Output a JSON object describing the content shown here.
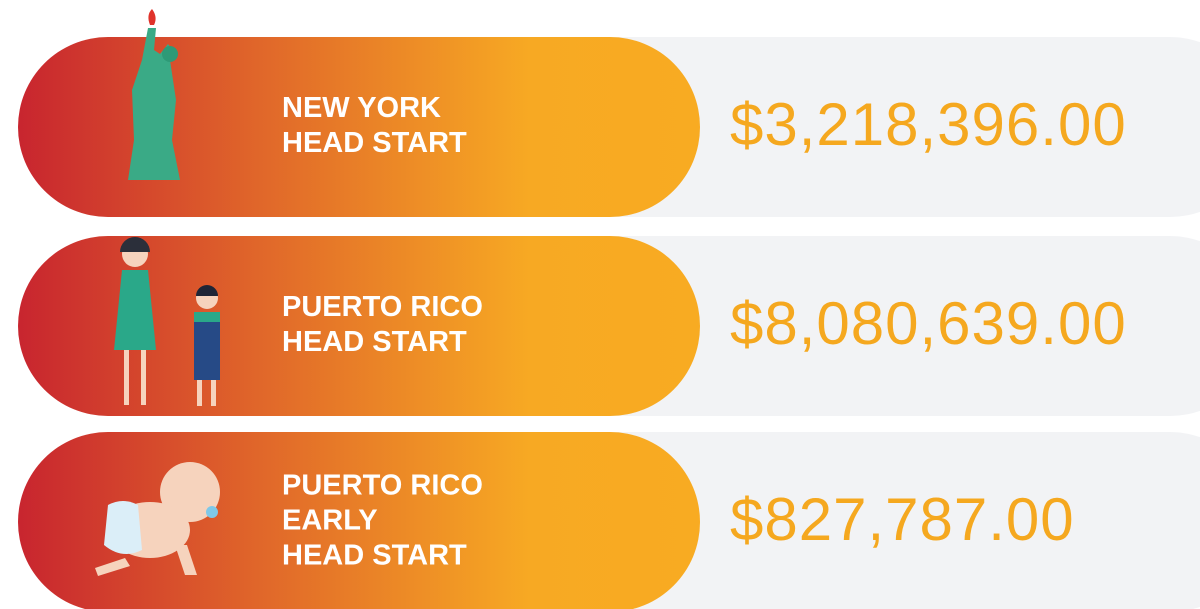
{
  "rows": [
    {
      "label_lines": [
        "NEW YORK",
        "HEAD START"
      ],
      "amount": "$3,218,396.00"
    },
    {
      "label_lines": [
        "PUERTO RICO",
        "HEAD START"
      ],
      "amount": "$8,080,639.00"
    },
    {
      "label_lines": [
        "PUERTO RICO",
        "EARLY",
        "HEAD START"
      ],
      "amount": "$827,787.00"
    }
  ]
}
